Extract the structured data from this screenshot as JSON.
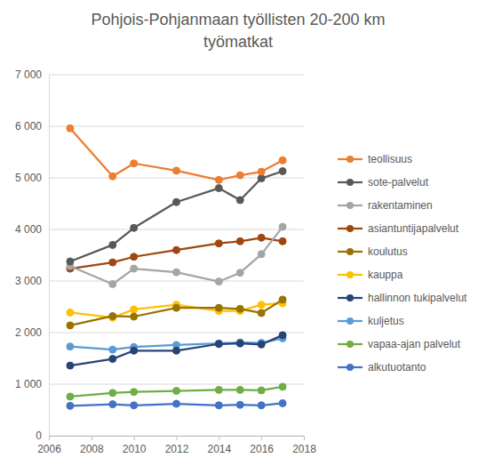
{
  "chart_data": {
    "type": "line",
    "title": "Pohjois-Pohjanmaan työllisten 20-200 km työmatkat",
    "x": [
      2007,
      2009,
      2010,
      2012,
      2014,
      2015,
      2016,
      2017
    ],
    "xlim": [
      2006,
      2018
    ],
    "xticks": [
      2006,
      2008,
      2010,
      2012,
      2014,
      2016,
      2018
    ],
    "ylim": [
      0,
      7000
    ],
    "yticks": [
      0,
      {
        "value": 1000,
        "label": "1 000"
      },
      {
        "value": 2000,
        "label": "2 000"
      },
      {
        "value": 3000,
        "label": "3 000"
      },
      {
        "value": 4000,
        "label": "4 000"
      },
      {
        "value": 5000,
        "label": "5 000"
      },
      {
        "value": 6000,
        "label": "6 000"
      },
      {
        "value": 7000,
        "label": "7 000"
      }
    ],
    "grid": true,
    "legend": "right",
    "marker": "circle",
    "series": [
      {
        "name": "teollisuus",
        "color": "#ED7D31",
        "values": [
          5960,
          5030,
          5280,
          5140,
          4960,
          5050,
          5120,
          5340
        ]
      },
      {
        "name": "sote-palvelut",
        "color": "#595959",
        "values": [
          3380,
          3700,
          4030,
          4530,
          4800,
          4570,
          4990,
          5130
        ]
      },
      {
        "name": "rakentaminen",
        "color": "#A5A5A5",
        "values": [
          3290,
          2940,
          3240,
          3170,
          2990,
          3160,
          3520,
          4050
        ]
      },
      {
        "name": "asiantuntijapalvelut",
        "color": "#9E480E",
        "values": [
          3240,
          3360,
          3470,
          3600,
          3730,
          3770,
          3840,
          3770
        ]
      },
      {
        "name": "koulutus",
        "color": "#997300",
        "values": [
          2140,
          2320,
          2310,
          2480,
          2480,
          2460,
          2380,
          2640
        ]
      },
      {
        "name": "kauppa",
        "color": "#FFC000",
        "values": [
          2390,
          2290,
          2450,
          2540,
          2420,
          2420,
          2540,
          2570
        ]
      },
      {
        "name": "hallinnon tukipalvelut",
        "color": "#264478",
        "values": [
          1360,
          1490,
          1650,
          1650,
          1780,
          1790,
          1770,
          1950
        ]
      },
      {
        "name": "kuljetus",
        "color": "#5B9BD5",
        "values": [
          1730,
          1670,
          1720,
          1760,
          1790,
          1810,
          1800,
          1890
        ]
      },
      {
        "name": "vapaa-ajan palvelut",
        "color": "#70AD47",
        "values": [
          760,
          830,
          850,
          870,
          890,
          890,
          880,
          950
        ]
      },
      {
        "name": "alkutuotanto",
        "color": "#4472C4",
        "values": [
          580,
          610,
          590,
          620,
          590,
          600,
          590,
          630
        ]
      }
    ]
  }
}
